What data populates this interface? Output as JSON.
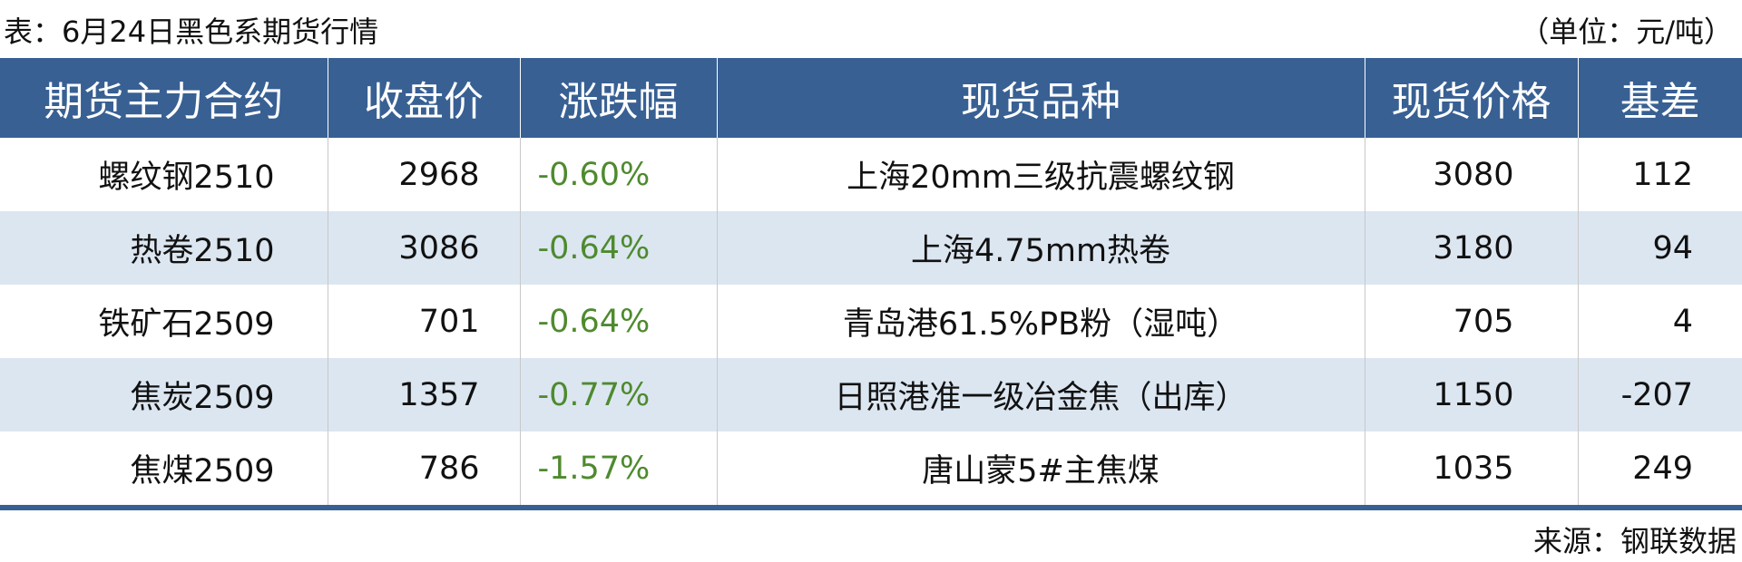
{
  "title": "表：6月24日黑色系期货行情",
  "unit": "（单位：元/吨）",
  "colors": {
    "header_bg": "#386093",
    "alt_row_bg": "#dce6f1",
    "change_text": "#4e8a2e"
  },
  "table": {
    "headers": [
      "期货主力合约",
      "收盘价",
      "涨跌幅",
      "现货品种",
      "现货价格",
      "基差"
    ],
    "rows": [
      [
        "螺纹钢2510",
        "2968",
        "-0.60%",
        "上海20mm三级抗震螺纹钢",
        "3080",
        "112"
      ],
      [
        "热卷2510",
        "3086",
        "-0.64%",
        "上海4.75mm热卷",
        "3180",
        "94"
      ],
      [
        "铁矿石2509",
        "701",
        "-0.64%",
        "青岛港61.5%PB粉（湿吨）",
        "705",
        "4"
      ],
      [
        "焦炭2509",
        "1357",
        "-0.77%",
        "日照港准一级冶金焦（出库）",
        "1150",
        "-207"
      ],
      [
        "焦煤2509",
        "786",
        "-1.57%",
        "唐山蒙5#主焦煤",
        "1035",
        "249"
      ]
    ]
  },
  "source": "来源：钢联数据"
}
